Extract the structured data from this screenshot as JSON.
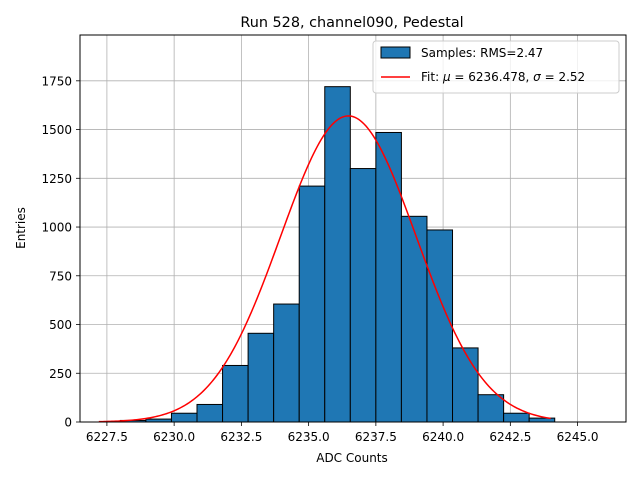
{
  "chart_data": {
    "type": "bar",
    "title": "Run 528, channel090, Pedestal",
    "xlabel": "ADC Counts",
    "ylabel": "Entries",
    "xlim": [
      6226.5,
      6246.8
    ],
    "ylim": [
      0,
      1985
    ],
    "x_ticks": [
      "6227.5",
      "6230.0",
      "6232.5",
      "6235.0",
      "6237.5",
      "6240.0",
      "6242.5",
      "6245.0"
    ],
    "y_ticks": [
      "0",
      "250",
      "500",
      "750",
      "1000",
      "1250",
      "1500",
      "1750"
    ],
    "grid": true,
    "legend_position": "top-right",
    "bar_color": "#1f77b4",
    "fit_color": "#ff0000",
    "histogram": {
      "name": "Samples: RMS=2.47",
      "bin_width": 0.95,
      "bin_starts": [
        6228.0,
        6228.95,
        6229.9,
        6230.85,
        6231.8,
        6232.75,
        6233.7,
        6234.65,
        6235.6,
        6236.55,
        6237.5,
        6238.45,
        6239.4,
        6240.35,
        6241.3,
        6242.25,
        6243.2
      ],
      "values": [
        8,
        15,
        45,
        90,
        290,
        455,
        605,
        1210,
        1720,
        1300,
        1485,
        1055,
        985,
        380,
        140,
        45,
        20
      ]
    },
    "fit": {
      "name_prefix": "Fit: ",
      "mu_symbol": "μ",
      "mu_text": " = 6236.478, ",
      "sigma_symbol": "σ",
      "sigma_text": " = 2.52",
      "mu": 6236.478,
      "sigma": 2.52,
      "amplitude": 1570,
      "x_range": [
        6227.2,
        6244.0
      ]
    }
  }
}
